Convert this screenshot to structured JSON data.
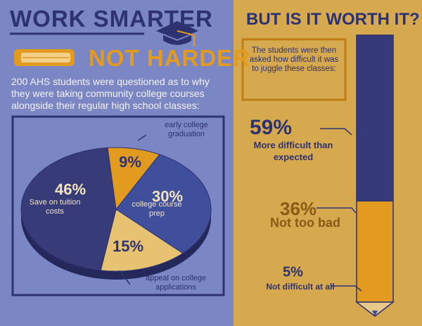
{
  "header": {
    "title": "WORK SMARTER",
    "subtitle": "NOT HARDER",
    "intro": "200 AHS students were questioned as to why they were taking community college courses alongside their regular high school classes:"
  },
  "chart_data": [
    {
      "type": "pie",
      "categories": [
        "early college graduation",
        "college course prep",
        "appeal on college applications",
        "Save on tuition costs"
      ],
      "values": [
        9,
        30,
        15,
        46
      ],
      "value_labels": [
        "9%",
        "30%",
        "15%",
        "46%"
      ],
      "colors": [
        "#e39b1f",
        "#3f4f9c",
        "#e6c271",
        "#373b78"
      ]
    },
    {
      "type": "pencil",
      "title": "BUT IS IT WORTH IT?",
      "subtitle": "The students were then asked how difficult it was to juggle these classes:",
      "categories": [
        "More difficult than expected",
        "Not too bad",
        "Not difficult at all"
      ],
      "values": [
        59,
        36,
        5
      ],
      "value_labels": [
        "59%",
        "36%",
        "5%"
      ],
      "colors": [
        "#363a7a",
        "#e39b1f",
        "#e8c98a"
      ]
    }
  ]
}
